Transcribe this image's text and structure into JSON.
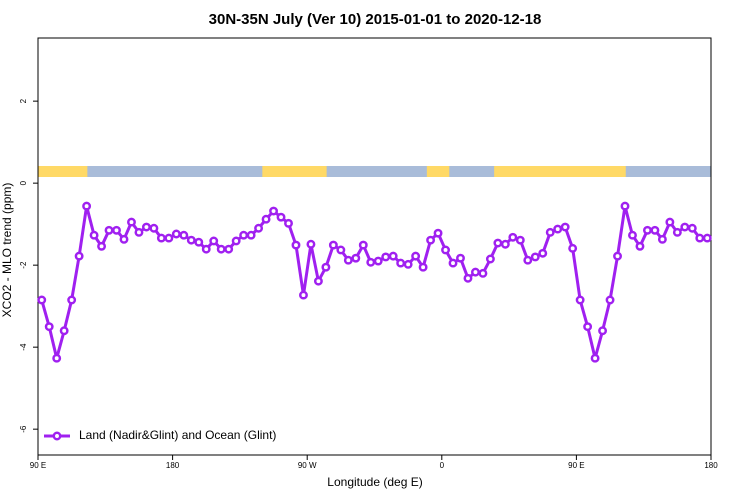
{
  "chart_data": {
    "type": "line",
    "title": "30N-35N July (Ver 10)   2015-01-01 to 2020-12-18",
    "x_label": "Longitude (deg E)",
    "y_label": "XCO2 - MLO trend (ppm)",
    "x": [
      92.5,
      97.5,
      102.5,
      107.5,
      112.5,
      117.5,
      122.5,
      127.5,
      132.5,
      137.5,
      142.5,
      147.5,
      152.5,
      157.5,
      162.5,
      167.5,
      172.5,
      177.5,
      182.5,
      187.5,
      192.5,
      197.5,
      202.5,
      207.5,
      212.5,
      217.5,
      222.5,
      227.5,
      232.5,
      237.5,
      242.5,
      247.5,
      252.5,
      257.5,
      262.5,
      267.5,
      272.5,
      277.5,
      282.5,
      287.5,
      292.5,
      297.5,
      302.5,
      307.5,
      312.5,
      317.5,
      322.5,
      327.5,
      332.5,
      337.5,
      342.5,
      347.5,
      352.5,
      357.5,
      362.5,
      367.5,
      372.5,
      377.5,
      382.5,
      387.5,
      392.5,
      397.5,
      402.5,
      407.5,
      412.5,
      417.5,
      422.5,
      427.5,
      432.5,
      437.5,
      442.5,
      447.5,
      452.5,
      457.5,
      462.5,
      467.5,
      472.5,
      477.5,
      482.5,
      487.5,
      492.5,
      497.5,
      502.5,
      507.5,
      512.5,
      517.5,
      522.5,
      527.5,
      532.5,
      537.5
    ],
    "series": [
      {
        "name": "Land (Nadir&Glint) and Ocean (Glint)",
        "color": "#a020f0",
        "values": [
          -2.85,
          -3.5,
          -4.27,
          -3.6,
          -2.85,
          -1.78,
          -0.56,
          -1.27,
          -1.54,
          -1.15,
          -1.15,
          -1.37,
          -0.95,
          -1.2,
          -1.07,
          -1.1,
          -1.34,
          -1.34,
          -1.24,
          -1.27,
          -1.39,
          -1.44,
          -1.61,
          -1.41,
          -1.61,
          -1.61,
          -1.41,
          -1.27,
          -1.27,
          -1.1,
          -0.88,
          -0.68,
          -0.83,
          -0.98,
          -1.51,
          -2.73,
          -1.49,
          -2.39,
          -2.05,
          -1.51,
          -1.63,
          -1.88,
          -1.83,
          -1.51,
          -1.93,
          -1.9,
          -1.8,
          -1.78,
          -1.95,
          -1.98,
          -1.78,
          -2.05,
          -1.39,
          -1.22,
          -1.63,
          -1.95,
          -1.83,
          -2.32,
          -2.17,
          -2.2,
          -1.85,
          -1.46,
          -1.49,
          -1.32,
          -1.39,
          -1.88,
          -1.8,
          -1.71,
          -1.2,
          -1.12,
          -1.07,
          -1.59,
          -2.85,
          -3.5,
          -4.27,
          -3.6,
          -2.85,
          -1.78,
          -0.56,
          -1.27,
          -1.54,
          -1.15,
          -1.15,
          -1.37,
          -0.95,
          -1.2,
          -1.07,
          -1.1,
          -1.34,
          -1.34
        ]
      }
    ],
    "land_spans": [
      [
        90,
        123
      ],
      [
        240,
        283
      ],
      [
        350,
        365
      ],
      [
        395,
        483
      ]
    ],
    "land_color": "#ffd966",
    "ocean_color": "#a9bcd9",
    "xlim": [
      90,
      540
    ],
    "xticks": [
      {
        "value": 90,
        "label": "90 E"
      },
      180,
      {
        "value": 270,
        "label": "90 W"
      },
      {
        "value": 360,
        "label": "0"
      },
      {
        "value": 450,
        "label": "90 E"
      },
      {
        "value": 540,
        "label": "180"
      }
    ],
    "ylim": [
      -6.63,
      3.54
    ],
    "yticks": [
      2,
      0,
      -2,
      -4,
      -6
    ],
    "legend": "bottom-left"
  }
}
